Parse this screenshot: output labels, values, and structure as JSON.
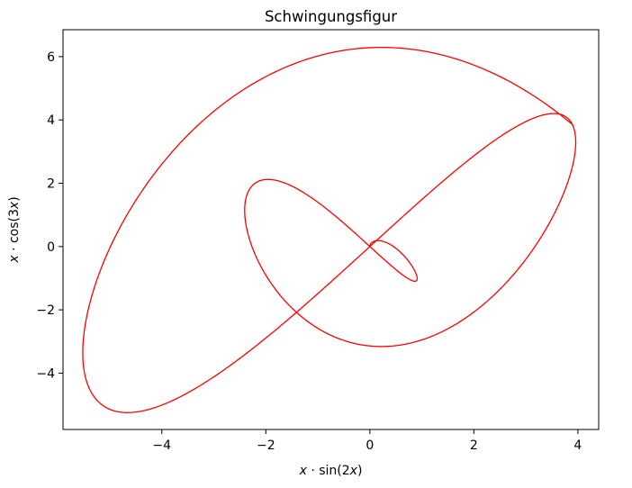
{
  "chart_data": {
    "type": "line",
    "title": "Schwingungsfigur",
    "xlabel": {
      "pre": "x",
      "mid": " · sin(2",
      "var": "x",
      "post": ")"
    },
    "ylabel": {
      "pre": "x",
      "mid": " · cos(3",
      "var": "x",
      "post": ")"
    },
    "xlim": [
      -5.9,
      4.4
    ],
    "ylim": [
      -5.78,
      6.85
    ],
    "xticks": [
      -4,
      -2,
      0,
      2,
      4
    ],
    "yticks": [
      -4,
      -2,
      0,
      2,
      4,
      6
    ],
    "xtick_labels": [
      "−4",
      "−2",
      "0",
      "2",
      "4"
    ],
    "ytick_labels": [
      "−4",
      "−2",
      "0",
      "2",
      "4",
      "6"
    ],
    "grid": false,
    "series": [
      {
        "color": "#ff0000",
        "parametric": {
          "x": "t*sin(2t)",
          "y": "t*cos(3t)",
          "t_start": 0,
          "t_end": 6.6,
          "samples": 1000
        }
      }
    ]
  }
}
